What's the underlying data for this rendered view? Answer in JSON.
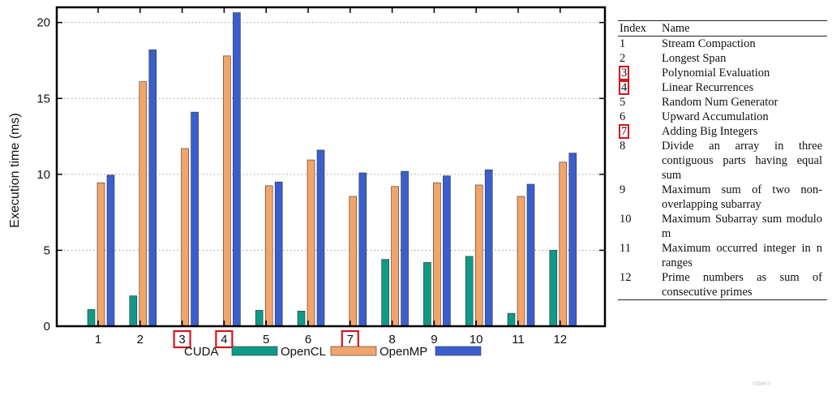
{
  "chart_data": {
    "type": "bar",
    "categories": [
      "1",
      "2",
      "3",
      "4",
      "5",
      "6",
      "7",
      "8",
      "9",
      "10",
      "11",
      "12"
    ],
    "highlighted_categories": [
      "3",
      "4",
      "7"
    ],
    "series": [
      {
        "name": "CUDA",
        "color": "#0f9a86",
        "values": [
          1.1,
          2.0,
          0,
          0,
          1.05,
          1.0,
          0,
          4.4,
          4.2,
          4.6,
          0.85,
          5.0
        ]
      },
      {
        "name": "OpenCL",
        "color": "#f2a46b",
        "values": [
          9.45,
          16.1,
          11.7,
          17.8,
          9.25,
          10.95,
          8.55,
          9.2,
          9.45,
          9.3,
          8.55,
          10.8
        ]
      },
      {
        "name": "OpenMP",
        "color": "#3a5fcd",
        "values": [
          9.95,
          18.2,
          14.1,
          20.65,
          9.5,
          11.6,
          10.1,
          10.2,
          9.9,
          10.3,
          9.35,
          11.4
        ]
      }
    ],
    "ylabel": "Execution time (ms)",
    "xlabel": "",
    "ylim": [
      0,
      21
    ],
    "yticks": [
      0,
      5,
      10,
      15,
      20
    ],
    "grid": "horizontal dotted",
    "legend_position": "bottom-center"
  },
  "table": {
    "headers": [
      "Index",
      "Name"
    ],
    "rows": [
      {
        "index": "1",
        "name": "Stream Compaction",
        "highlighted": false
      },
      {
        "index": "2",
        "name": "Longest Span",
        "highlighted": false
      },
      {
        "index": "3",
        "name": "Polynomial Evaluation",
        "highlighted": true
      },
      {
        "index": "4",
        "name": "Linear Recurrences",
        "highlighted": true
      },
      {
        "index": "5",
        "name": "Random Num Generator",
        "highlighted": false
      },
      {
        "index": "6",
        "name": "Upward Accumulation",
        "highlighted": false
      },
      {
        "index": "7",
        "name": "Adding Big Integers",
        "highlighted": true
      },
      {
        "index": "8",
        "name": "Divide an array in three contiguous parts having equal sum",
        "highlighted": false
      },
      {
        "index": "9",
        "name": "Maximum sum of two non-overlapping subarray",
        "highlighted": false
      },
      {
        "index": "10",
        "name": "Maximum Subarray sum modulo m",
        "highlighted": false
      },
      {
        "index": "11",
        "name": "Maximum occurred integer in n ranges",
        "highlighted": false
      },
      {
        "index": "12",
        "name": "Prime numbers as sum of consecutive primes",
        "highlighted": false
      }
    ]
  },
  "highlight_color": "#d4151b",
  "corner_note": "mber>"
}
